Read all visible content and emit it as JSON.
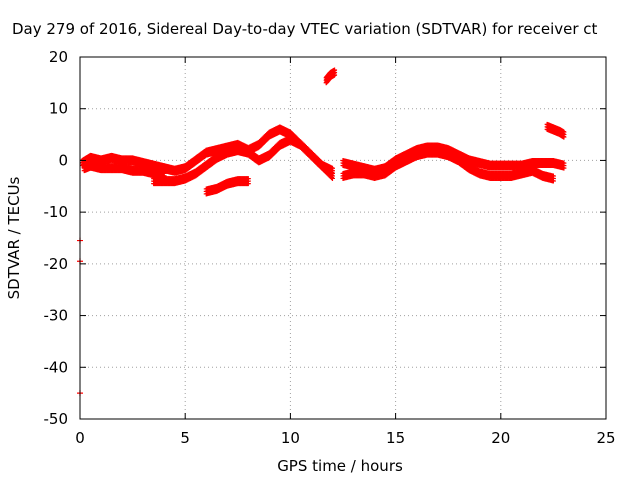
{
  "chart_data": {
    "type": "scatter",
    "title": "Day 279 of 2016, Sidereal Day-to-day VTEC variation (SDTVAR) for receiver ct",
    "xlabel": "GPS time / hours",
    "ylabel": "SDTVAR / TECUs",
    "xlim": [
      0,
      25
    ],
    "ylim": [
      -50,
      20
    ],
    "xticks": [
      "0",
      "5",
      "10",
      "15",
      "20",
      "25"
    ],
    "yticks": [
      "20",
      "10",
      "0",
      "-10",
      "-20",
      "-30",
      "-40",
      "-50"
    ],
    "grid": true,
    "series": [
      {
        "name": "SDTVAR",
        "color": "#ff0000",
        "marker": "plus",
        "segments": [
          {
            "x": [
              0.1,
              0.5,
              1.0,
              1.5,
              2.0,
              2.5,
              3.0,
              3.5,
              4.0,
              4.5,
              5.0,
              5.5,
              6.0,
              6.5,
              7.0,
              7.5,
              8.0,
              8.5,
              9.0,
              9.5,
              10.0,
              10.5,
              11.0,
              11.5,
              12.0
            ],
            "y": [
              -0.5,
              0.5,
              0.0,
              0.5,
              0.0,
              0.0,
              -0.5,
              -1.0,
              -1.5,
              -2.0,
              -1.5,
              0.0,
              1.5,
              2.0,
              2.5,
              3.0,
              2.0,
              3.0,
              5.0,
              6.0,
              5.0,
              3.0,
              1.0,
              -1.0,
              -3.0
            ]
          },
          {
            "x": [
              0.2,
              0.5,
              1.0,
              1.5,
              2.0,
              2.5,
              3.0,
              3.5,
              4.0
            ],
            "y": [
              -1.5,
              -1.0,
              -1.5,
              -1.5,
              -1.5,
              -2.0,
              -2.0,
              -2.5,
              -2.5
            ]
          },
          {
            "x": [
              3.5,
              4.0,
              4.5,
              5.0,
              5.5,
              6.0,
              6.5,
              7.0,
              7.5,
              8.0,
              8.5,
              9.0,
              9.5,
              10.0,
              10.5,
              11.0,
              11.5,
              12.0
            ],
            "y": [
              -4.0,
              -4.0,
              -4.0,
              -3.5,
              -2.5,
              -1.0,
              0.5,
              1.5,
              2.0,
              1.5,
              0.0,
              1.0,
              3.0,
              4.0,
              3.0,
              1.0,
              -1.0,
              -2.0
            ]
          },
          {
            "x": [
              6.0,
              6.5,
              7.0,
              7.5,
              8.0
            ],
            "y": [
              -6.0,
              -5.5,
              -4.5,
              -4.0,
              -4.0
            ]
          },
          {
            "x": [
              11.7,
              11.9,
              12.1
            ],
            "y": [
              15.5,
              16.5,
              17.0
            ]
          },
          {
            "x": [
              12.5,
              13.0,
              13.5,
              14.0,
              14.5,
              15.0,
              15.5,
              16.0,
              16.5,
              17.0,
              17.5,
              18.0,
              18.5,
              19.0,
              19.5,
              20.0,
              20.5,
              21.0,
              21.5,
              22.0,
              22.5,
              23.0
            ],
            "y": [
              -0.5,
              -1.0,
              -1.5,
              -2.0,
              -1.5,
              0.0,
              1.0,
              2.0,
              2.5,
              2.5,
              2.0,
              1.0,
              0.0,
              -0.5,
              -1.0,
              -1.0,
              -1.0,
              -1.0,
              -0.5,
              -0.5,
              -0.5,
              -1.0
            ]
          },
          {
            "x": [
              12.5,
              13.0,
              13.5,
              14.0,
              14.5,
              15.0,
              15.5,
              16.0,
              16.5,
              17.0,
              17.5,
              18.0,
              18.5,
              19.0,
              19.5,
              20.0,
              20.5,
              21.0,
              21.5,
              22.0,
              22.5
            ],
            "y": [
              -3.0,
              -2.5,
              -2.5,
              -3.0,
              -2.5,
              -1.0,
              0.0,
              1.0,
              1.5,
              1.5,
              1.0,
              0.0,
              -1.5,
              -2.5,
              -3.0,
              -3.0,
              -3.0,
              -2.5,
              -2.0,
              -3.0,
              -3.5
            ]
          },
          {
            "x": [
              22.2,
              22.5,
              22.8,
              23.0
            ],
            "y": [
              6.5,
              6.0,
              5.5,
              5.0
            ]
          },
          {
            "x": [
              0.0,
              0.0,
              0.0
            ],
            "y": [
              -15.5,
              -19.5,
              -45.0
            ]
          }
        ]
      }
    ]
  }
}
